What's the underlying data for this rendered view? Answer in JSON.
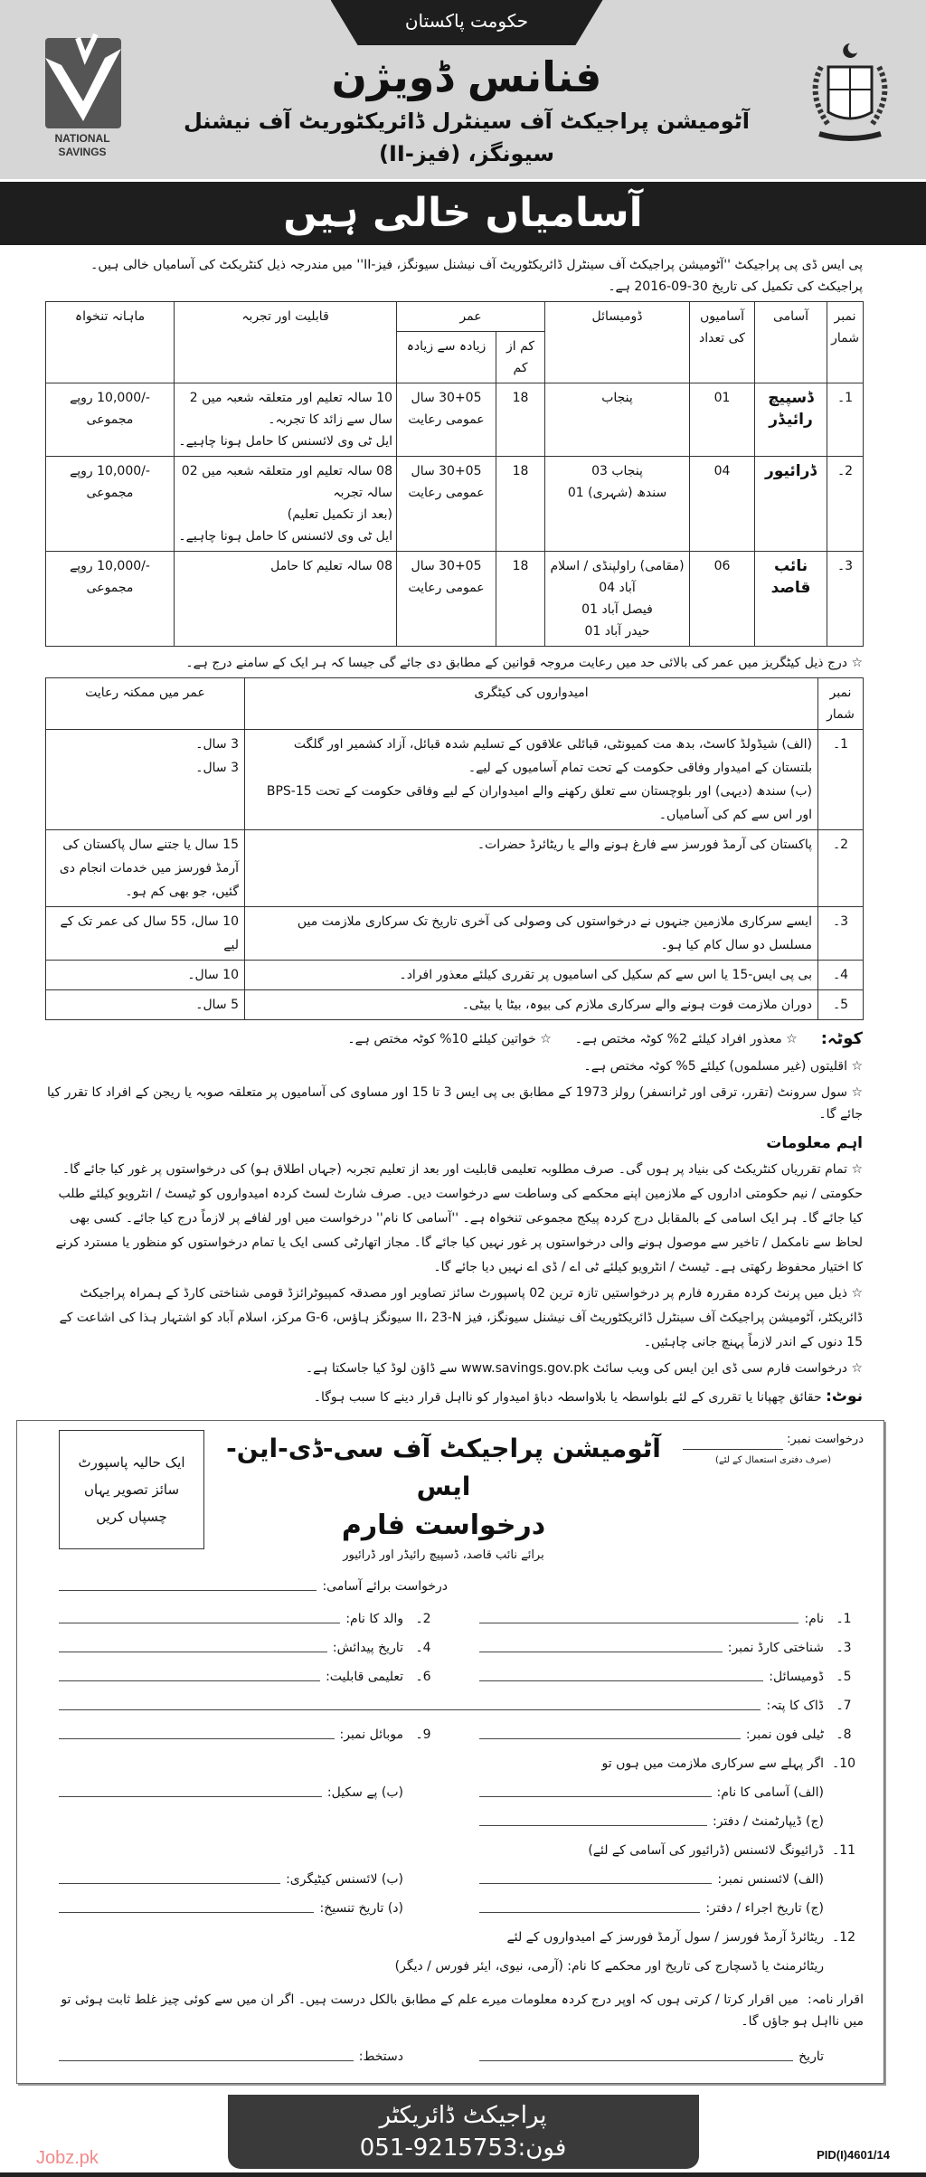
{
  "header": {
    "government": "حکومت پاکستان",
    "title": "فنانس ڈویژن",
    "subtitle": "آٹومیشن پراجیکٹ آف سینٹرل ڈائریکٹوریٹ آف نیشنل سیونگز، (فیز-II)",
    "logo_text": "NATIONAL SAVINGS",
    "banner": "آسامیاں خالی ہیں"
  },
  "intro": "پی ایس ڈی پی پراجیکٹ ''آٹومیشن پراجیکٹ آف سینٹرل ڈائریکٹوریٹ آف نیشنل سیونگز، فیز-II'' میں مندرجہ ذیل کنٹریکٹ کی آسامیاں خالی ہیں۔ پراجیکٹ کی تکمیل کی تاریخ 30-09-2016 ہے۔",
  "vacancies": {
    "headers": {
      "serial": "نمبر شمار",
      "post": "آسامی",
      "count": "آسامیوں کی تعداد",
      "domicile": "ڈومیسائل",
      "age": "عمر",
      "age_min": "کم از کم",
      "age_max": "زیادہ سے زیادہ",
      "qualification": "قابلیت اور تجربہ",
      "salary": "ماہانہ تنخواہ"
    },
    "rows": [
      {
        "serial": "1۔",
        "post": "ڈسپیچ رائیڈر",
        "count": "01",
        "domicile": [
          "پنجاب"
        ],
        "age_min": "18",
        "age_max": [
          "30+05 سال",
          "عمومی رعایت"
        ],
        "qualification": [
          "10 سالہ تعلیم اور متعلقہ شعبہ میں 2 سال سے زائد کا تجربہ۔",
          "ایل ٹی وی لائسنس کا حامل ہونا چاہیے۔"
        ],
        "salary": "-/10,000 روپے مجموعی"
      },
      {
        "serial": "2۔",
        "post": "ڈرائیور",
        "count": "04",
        "domicile": [
          "پنجاب 03",
          "سندھ (شہری) 01"
        ],
        "age_min": "18",
        "age_max": [
          "30+05 سال",
          "عمومی رعایت"
        ],
        "qualification": [
          "08 سالہ تعلیم اور متعلقہ شعبہ میں 02 سالہ تجربہ",
          "(بعد از تکمیل تعلیم)",
          "ایل ٹی وی لائسنس کا حامل ہونا چاہیے۔"
        ],
        "salary": "-/10,000 روپے مجموعی"
      },
      {
        "serial": "3۔",
        "post": "نائب قاصد",
        "count": "06",
        "domicile": [
          "(مقامی) راولپنڈی / اسلام آباد 04",
          "فیصل آباد 01",
          "حیدر آباد 01"
        ],
        "age_min": "18",
        "age_max": [
          "30+05 سال",
          "عمومی رعایت"
        ],
        "qualification": [
          "08 سالہ تعلیم کا حامل"
        ],
        "salary": "-/10,000 روپے مجموعی"
      }
    ]
  },
  "age_note": "☆ درج ذیل کیٹگریز میں عمر کی بالائی حد میں رعایت مروجہ قوانین کے مطابق دی جائے گی جیسا کہ ہر ایک کے سامنے درج ہے۔",
  "relaxation": {
    "headers": {
      "serial": "نمبر شمار",
      "category": "امیدواروں کی کیٹگری",
      "relaxation": "عمر میں ممکنہ رعایت"
    },
    "rows": [
      {
        "serial": "1۔",
        "category": [
          "(الف) شیڈولڈ کاسٹ، بدھ مت کمیونٹی، قبائلی علاقوں کے تسلیم شدہ قبائل، آزاد کشمیر اور گلگت بلتستان کے امیدوار وفاقی حکومت کے تحت تمام آسامیوں کے لیے۔",
          "(ب) سندھ (دیہی) اور بلوچستان سے تعلق رکھنے والے امیدواران کے لیے وفاقی حکومت کے تحت BPS-15 اور اس سے کم کی آسامیاں۔"
        ],
        "relaxation": [
          "3 سال۔",
          "3 سال۔"
        ]
      },
      {
        "serial": "2۔",
        "category": [
          "پاکستان کی آرمڈ فورسز سے فارغ ہونے والے یا ریٹائرڈ حضرات۔"
        ],
        "relaxation": [
          "15 سال یا جتنے سال پاکستان کی آرمڈ فورسز میں خدمات انجام دی گئیں، جو بھی کم ہو۔"
        ]
      },
      {
        "serial": "3۔",
        "category": [
          "ایسے سرکاری ملازمین جنہوں نے درخواستوں کی وصولی کی آخری تاریخ تک سرکاری ملازمت میں مسلسل دو سال کام کیا ہو۔"
        ],
        "relaxation": [
          "10 سال، 55 سال کی عمر تک کے لیے"
        ]
      },
      {
        "serial": "4۔",
        "category": [
          "بی پی ایس-15 یا اس سے کم سکیل کی اسامیوں پر تقرری کیلئے معذور افراد۔"
        ],
        "relaxation": [
          "10 سال۔"
        ]
      },
      {
        "serial": "5۔",
        "category": [
          "دوران ملازمت فوت ہونے والے سرکاری ملازم کی بیوہ، بیٹا یا بیٹی۔"
        ],
        "relaxation": [
          "5 سال۔"
        ]
      }
    ]
  },
  "quota": {
    "label": "کوٹہ:",
    "items": [
      "☆ معذور افراد کیلئے 2% کوٹہ مختص ہے۔",
      "☆ خواتین کیلئے 10% کوٹہ مختص ہے۔",
      "☆ اقلیتوں (غیر مسلموں) کیلئے 5% کوٹہ مختص ہے۔"
    ]
  },
  "civil_rule": "☆ سول سرونٹ (تقرر، ترقی اور ٹرانسفر) رولز 1973 کے مطابق بی پی ایس 3 تا 15 اور مساوی کی آسامیوں پر متعلقہ صوبہ یا ریجن کے افراد کا تقرر کیا جائے گا۔",
  "important": {
    "heading": "اہم معلومات",
    "bullets": [
      "☆ تمام تقرریاں کنٹریکٹ کی بنیاد پر ہوں گی۔ صرف مطلوبہ تعلیمی قابلیت اور بعد از تعلیم تجربہ (جہاں اطلاق ہو) کی درخواستوں پر غور کیا جائے گا۔ حکومتی / نیم حکومتی اداروں کے ملازمین اپنے محکمے کی وساطت سے درخواست دیں۔ صرف شارٹ لسٹ کردہ امیدواروں کو ٹیسٹ / انٹرویو کیلئے طلب کیا جائے گا۔ ہر ایک اسامی کے بالمقابل درج کردہ پیکج مجموعی تنخواہ ہے۔ ''آسامی کا نام'' درخواست میں اور لفافے پر لازماً درج کیا جائے۔ کسی بھی لحاظ سے نامکمل / تاخیر سے موصول ہونے والی درخواستوں پر غور نہیں کیا جائے گا۔ مجاز اتھارٹی کسی ایک یا تمام درخواستوں کو منظور یا مسترد کرنے کا اختیار محفوظ رکھتی ہے۔ ٹیسٹ / انٹرویو کیلئے ٹی اے / ڈی اے نہیں دیا جائے گا۔",
      "☆ ذیل میں پرنٹ کردہ مقررہ فارم پر درخواستیں تازہ ترین 02 پاسپورٹ سائز تصاویر اور مصدقہ کمپیوٹرائزڈ قومی شناختی کارڈ کے ہمراہ پراجیکٹ ڈائریکٹر، آٹومیشن پراجیکٹ آف سینٹرل ڈائریکٹوریٹ آف نیشنل سیونگز، فیز II، 23-N سیونگز ہاؤس، G-6 مرکز، اسلام آباد کو اشتہار ہذا کی اشاعت کے 15 دنوں کے اندر لازماً پہنچ جانی چاہئیں۔",
      "☆ درخواست فارم سی ڈی این ایس کی ویب سائٹ www.savings.gov.pk سے ڈاؤن لوڈ کیا جاسکتا ہے۔"
    ]
  },
  "note": {
    "label": "نوٹ:",
    "text": "حقائق چھپانا یا تقرری کے لئے بلواسطہ یا بلاواسطہ دباؤ امیدوار کو نااہل قرار دینے کا سبب ہوگا۔"
  },
  "form": {
    "title": "آٹومیشن پراجیکٹ آف سی-ڈی-این-ایس",
    "name": "درخواست فارم",
    "subtitle": "برائے نائب قاصد، ڈسپیچ رائیڈر اور ڈرائیور",
    "application_no": "درخواست نمبر:",
    "application_no_note": "(صرف دفتری استعمال کے لئے)",
    "photo": "ایک حالیہ پاسپورٹ سائز تصویر یہاں چسپاں کریں",
    "position": "درخواست برائے آسامی:",
    "fields": {
      "f1": {
        "num": "1۔",
        "label": "نام:"
      },
      "f2": {
        "num": "2۔",
        "label": "والد کا نام:"
      },
      "f3": {
        "num": "3۔",
        "label": "شناختی کارڈ نمبر:"
      },
      "f4": {
        "num": "4۔",
        "label": "تاریخ پیدائش:"
      },
      "f5": {
        "num": "5۔",
        "label": "ڈومیسائل:"
      },
      "f6": {
        "num": "6۔",
        "label": "تعلیمی قابلیت:"
      },
      "f7": {
        "num": "7۔",
        "label": "ڈاک کا پتہ:"
      },
      "f8": {
        "num": "8۔",
        "label": "ٹیلی فون نمبر:"
      },
      "f9": {
        "num": "9۔",
        "label": "موبائل نمبر:"
      },
      "f10": {
        "num": "10۔",
        "label": "اگر پہلے سے سرکاری ملازمت میں ہوں تو"
      },
      "f10a": {
        "label": "(الف) آسامی کا نام:"
      },
      "f10b": {
        "label": "(ب) پے سکیل:"
      },
      "f10c": {
        "label": "(ج) ڈیپارٹمنٹ / دفتر:"
      },
      "f11": {
        "num": "11۔",
        "label": "ڈرائیونگ لائسنس (ڈرائیور کی آسامی کے لئے)"
      },
      "f11a": {
        "label": "(الف) لائسنس نمبر:"
      },
      "f11b": {
        "label": "(ب) لائسنس کیٹیگری:"
      },
      "f11c": {
        "label": "(ج) تاریخ اجراء / دفتر:"
      },
      "f11d": {
        "label": "(د) تاریخ تنسیخ:"
      },
      "f12": {
        "num": "12۔",
        "label": "ریٹائرڈ آرمڈ فورسز / سول آرمڈ فورسز کے امیدواروں کے لئے"
      },
      "f12a": {
        "label": "ریٹائرمنٹ یا ڈسچارج کی تاریخ اور محکمے کا نام: (آرمی، نیوی، ایئر فورس / دیگر)"
      }
    },
    "declaration_label": "اقرار نامہ:",
    "declaration": "میں اقرار کرتا / کرتی ہوں کہ اوپر درج کردہ معلومات میرے علم کے مطابق بالکل درست ہیں۔ اگر ان میں سے کوئی چیز غلط ثابت ہوئی تو میں نااہل ہو جاؤں گا۔",
    "date": "تاریخ",
    "signature": "دستخط:"
  },
  "footer": {
    "designation": "پراجیکٹ ڈائریکٹر",
    "phone_label": "فون:",
    "phone": "051-9215753",
    "pid": "PID(I)4601/14"
  },
  "watermark": "Jobz.pk"
}
